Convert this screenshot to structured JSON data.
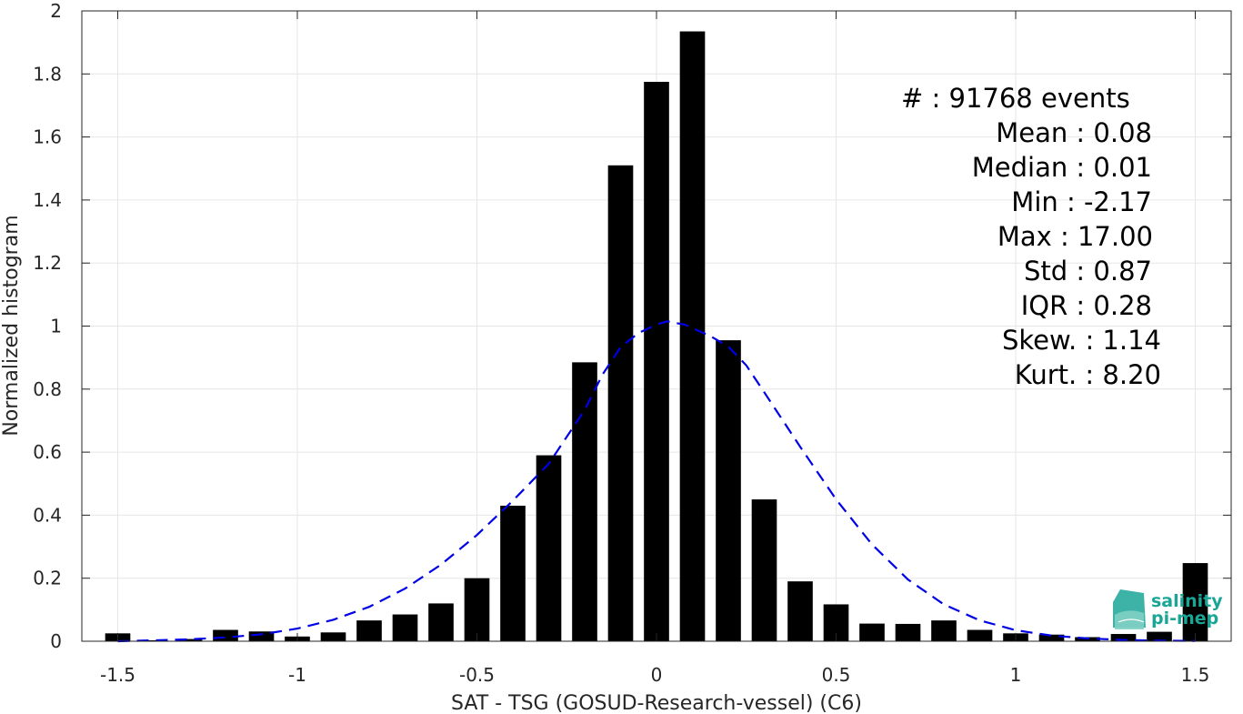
{
  "chart_data": {
    "type": "bar",
    "xlabel": "SAT - TSG (GOSUD-Research-vessel) (C6)",
    "ylabel": "Normalized histogram",
    "xlim": [
      -1.6,
      1.6
    ],
    "ylim": [
      0,
      2
    ],
    "grid": true,
    "x_ticks": [
      -1.5,
      -1,
      -0.5,
      0,
      0.5,
      1,
      1.5
    ],
    "x_tick_labels": [
      "-1.5",
      "-1",
      "-0.5",
      "0",
      "0.5",
      "1",
      "1.5"
    ],
    "y_ticks": [
      0,
      0.2,
      0.4,
      0.6,
      0.8,
      1,
      1.2,
      1.4,
      1.6,
      1.8,
      2
    ],
    "y_tick_labels": [
      "0",
      "0.2",
      "0.4",
      "0.6",
      "0.8",
      "1",
      "1.2",
      "1.4",
      "1.6",
      "1.8",
      "2"
    ],
    "bin_width": 0.1,
    "bar_color": "#000000",
    "bars": [
      {
        "x": -1.5,
        "value": 0.025
      },
      {
        "x": -1.4,
        "value": 0.003
      },
      {
        "x": -1.3,
        "value": 0.007
      },
      {
        "x": -1.2,
        "value": 0.036
      },
      {
        "x": -1.1,
        "value": 0.031
      },
      {
        "x": -1.0,
        "value": 0.015
      },
      {
        "x": -0.9,
        "value": 0.028
      },
      {
        "x": -0.8,
        "value": 0.066
      },
      {
        "x": -0.7,
        "value": 0.085
      },
      {
        "x": -0.6,
        "value": 0.12
      },
      {
        "x": -0.5,
        "value": 0.2
      },
      {
        "x": -0.4,
        "value": 0.43
      },
      {
        "x": -0.3,
        "value": 0.59
      },
      {
        "x": -0.2,
        "value": 0.885
      },
      {
        "x": -0.1,
        "value": 1.51
      },
      {
        "x": 0.0,
        "value": 1.775
      },
      {
        "x": 0.1,
        "value": 1.935
      },
      {
        "x": 0.2,
        "value": 0.955
      },
      {
        "x": 0.3,
        "value": 0.45
      },
      {
        "x": 0.4,
        "value": 0.19
      },
      {
        "x": 0.5,
        "value": 0.117
      },
      {
        "x": 0.6,
        "value": 0.056
      },
      {
        "x": 0.7,
        "value": 0.055
      },
      {
        "x": 0.8,
        "value": 0.066
      },
      {
        "x": 0.9,
        "value": 0.036
      },
      {
        "x": 1.0,
        "value": 0.025
      },
      {
        "x": 1.1,
        "value": 0.021
      },
      {
        "x": 1.2,
        "value": 0.013
      },
      {
        "x": 1.3,
        "value": 0.023
      },
      {
        "x": 1.4,
        "value": 0.03
      },
      {
        "x": 1.5,
        "value": 0.248
      }
    ],
    "fit_curve": {
      "style": "dashed",
      "color": "#0000e6",
      "points": [
        {
          "x": -1.5,
          "y": 0.0
        },
        {
          "x": -1.4,
          "y": 0.003
        },
        {
          "x": -1.3,
          "y": 0.006
        },
        {
          "x": -1.2,
          "y": 0.012
        },
        {
          "x": -1.1,
          "y": 0.022
        },
        {
          "x": -1.0,
          "y": 0.04
        },
        {
          "x": -0.9,
          "y": 0.068
        },
        {
          "x": -0.8,
          "y": 0.109
        },
        {
          "x": -0.7,
          "y": 0.167
        },
        {
          "x": -0.6,
          "y": 0.243
        },
        {
          "x": -0.5,
          "y": 0.337
        },
        {
          "x": -0.4,
          "y": 0.446
        },
        {
          "x": -0.3,
          "y": 0.563
        },
        {
          "x": -0.2,
          "y": 0.734
        },
        {
          "x": -0.15,
          "y": 0.847
        },
        {
          "x": -0.1,
          "y": 0.933
        },
        {
          "x": -0.05,
          "y": 0.978
        },
        {
          "x": 0.0,
          "y": 1.005
        },
        {
          "x": 0.03,
          "y": 1.015
        },
        {
          "x": 0.08,
          "y": 1.004
        },
        {
          "x": 0.15,
          "y": 0.968
        },
        {
          "x": 0.2,
          "y": 0.935
        },
        {
          "x": 0.25,
          "y": 0.875
        },
        {
          "x": 0.3,
          "y": 0.79
        },
        {
          "x": 0.4,
          "y": 0.617
        },
        {
          "x": 0.5,
          "y": 0.45
        },
        {
          "x": 0.6,
          "y": 0.307
        },
        {
          "x": 0.7,
          "y": 0.196
        },
        {
          "x": 0.8,
          "y": 0.117
        },
        {
          "x": 0.9,
          "y": 0.066
        },
        {
          "x": 1.0,
          "y": 0.035
        },
        {
          "x": 1.1,
          "y": 0.018
        },
        {
          "x": 1.2,
          "y": 0.009
        },
        {
          "x": 1.3,
          "y": 0.004
        },
        {
          "x": 1.4,
          "y": 0.002
        },
        {
          "x": 1.5,
          "y": 0.001
        }
      ]
    },
    "annotations": [
      "#  : 91768 events",
      "Mean : 0.08",
      "Median : 0.01",
      "Min : -2.17",
      "Max : 17.00",
      "Std : 0.87",
      "IQR : 0.28",
      "Skew. : 1.14",
      "Kurt. : 8.20"
    ]
  },
  "logo": {
    "line1": "salinity",
    "line2": "pi-mep",
    "color": "#1aa697"
  }
}
